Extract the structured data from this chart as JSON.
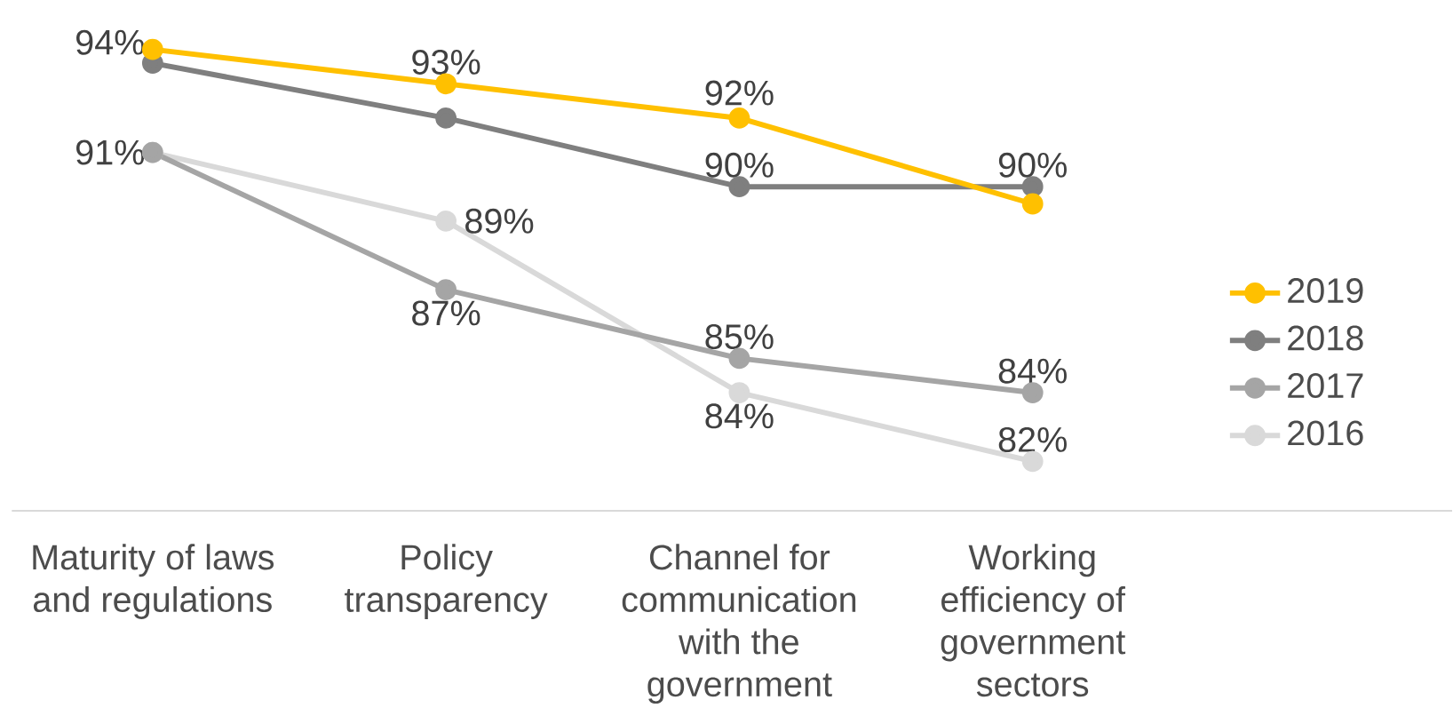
{
  "chart_data": {
    "type": "line",
    "categories": [
      "Maturity of laws and regulations",
      "Policy transparency",
      "Channel for communication with the government",
      "Working efficiency of government sectors"
    ],
    "series": [
      {
        "name": "2019",
        "color": "#ffc000",
        "values": [
          94,
          93,
          92,
          89.5
        ],
        "value_labels": [
          "94%",
          "93%",
          "92%",
          null
        ]
      },
      {
        "name": "2018",
        "color": "#7f7f7f",
        "values": [
          93.6,
          92,
          90,
          90
        ],
        "value_labels": [
          null,
          null,
          "90%",
          "90%"
        ]
      },
      {
        "name": "2017",
        "color": "#a5a5a5",
        "values": [
          91,
          87,
          85,
          84
        ],
        "value_labels": [
          "91%",
          "87%",
          "85%",
          "84%"
        ]
      },
      {
        "name": "2016",
        "color": "#d9d9d9",
        "values": [
          91,
          89,
          84,
          82
        ],
        "value_labels": [
          null,
          "89%",
          "84%",
          "82%"
        ]
      }
    ],
    "tick_labels": "x",
    "grid": false,
    "legend": "right",
    "marker": "circle",
    "line_style": "solid"
  }
}
